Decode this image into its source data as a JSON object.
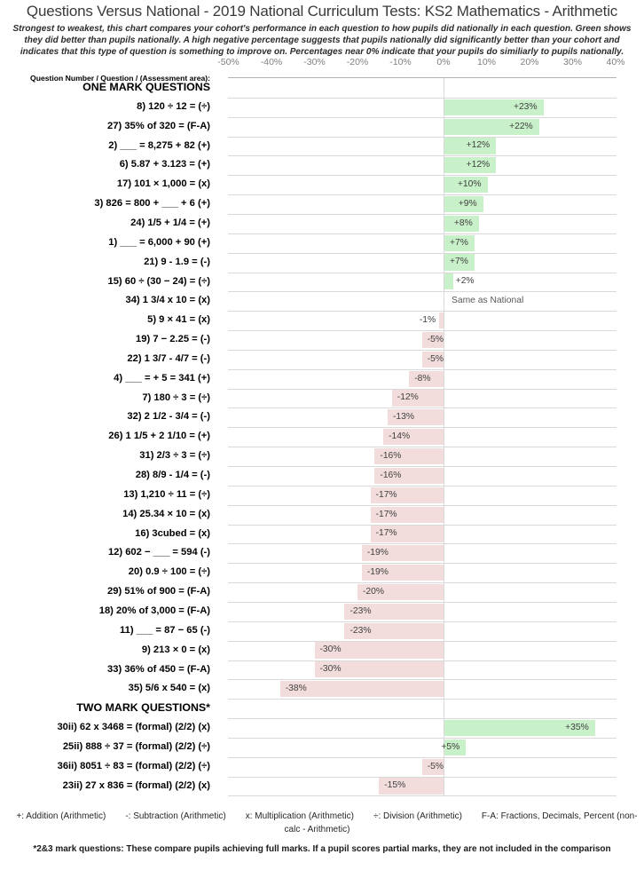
{
  "title": "Questions Versus National - 2019 National Curriculum Tests: KS2 Mathematics - Arithmetic",
  "subtitle": "Strongest to weakest, this chart compares your cohort's performance in each question to how pupils did nationally in each question. Green shows they did better than pupils nationally. A high negative percentage suggests that pupils nationally did significantly better than your cohort and indicates that this type of question is something to improve on. Percentages near 0% indicate that your pupils do similiarly to pupils nationally.",
  "row_header": "Question Number / Question / (Assessment area):",
  "chart_data": {
    "type": "bar",
    "orientation": "horizontal",
    "xlim": [
      -50,
      40
    ],
    "x_ticks": [
      "-50%",
      "-40%",
      "-30%",
      "-20%",
      "-10%",
      "0%",
      "10%",
      "20%",
      "30%",
      "40%"
    ],
    "tick_values": [
      -50,
      -40,
      -30,
      -20,
      -10,
      0,
      10,
      20,
      30,
      40
    ],
    "grid": "row-separators and zero line only",
    "zero_label": "Same as National",
    "colors": {
      "positive_fill": "#c8f0c9",
      "negative_fill": "#f2dddc",
      "gridline": "#d9d9d9",
      "label_text": "#404040"
    },
    "sections": [
      {
        "label": "ONE MARK QUESTIONS",
        "rows": [
          {
            "q": "8) 120 ÷ 12 = (÷)",
            "value": 23,
            "display": "+23%"
          },
          {
            "q": "27) 35% of 320 = (F-A)",
            "value": 22,
            "display": "+22%"
          },
          {
            "q": "2) ___ = 8,275 + 82 (+)",
            "value": 12,
            "display": "+12%"
          },
          {
            "q": "6) 5.87 + 3.123 = (+)",
            "value": 12,
            "display": "+12%"
          },
          {
            "q": "17) 101 × 1,000 = (x)",
            "value": 10,
            "display": "+10%"
          },
          {
            "q": "3) 826 = 800 + ___ + 6 (+)",
            "value": 9,
            "display": "+9%"
          },
          {
            "q": "24) 1/5 + 1/4 = (+)",
            "value": 8,
            "display": "+8%"
          },
          {
            "q": "1) ___ = 6,000 + 90 (+)",
            "value": 7,
            "display": "+7%"
          },
          {
            "q": "21) 9 - 1.9 = (-)",
            "value": 7,
            "display": "+7%"
          },
          {
            "q": "15) 60 ÷ (30 − 24) = (÷)",
            "value": 2,
            "display": "+2%"
          },
          {
            "q": "34) 1 3/4 x 10 = (x)",
            "value": 0,
            "display": "Same as National"
          },
          {
            "q": "5) 9 × 41 = (x)",
            "value": -1,
            "display": "-1%"
          },
          {
            "q": "19) 7 − 2.25 = (-)",
            "value": -5,
            "display": "-5%"
          },
          {
            "q": "22) 1 3/7 - 4/7 = (-)",
            "value": -5,
            "display": "-5%"
          },
          {
            "q": "4) ___ = + 5 = 341 (+)",
            "value": -8,
            "display": "-8%"
          },
          {
            "q": "7) 180 ÷ 3 = (÷)",
            "value": -12,
            "display": "-12%"
          },
          {
            "q": "32) 2 1/2 - 3/4 = (-)",
            "value": -13,
            "display": "-13%"
          },
          {
            "q": "26) 1 1/5 + 2 1/10 = (+)",
            "value": -14,
            "display": "-14%"
          },
          {
            "q": "31) 2/3 ÷ 3 = (÷)",
            "value": -16,
            "display": "-16%"
          },
          {
            "q": "28) 8/9 - 1/4 = (-)",
            "value": -16,
            "display": "-16%"
          },
          {
            "q": "13) 1,210 ÷ 11 = (÷)",
            "value": -17,
            "display": "-17%"
          },
          {
            "q": "14) 25.34 × 10 = (x)",
            "value": -17,
            "display": "-17%"
          },
          {
            "q": "16) 3cubed = (x)",
            "value": -17,
            "display": "-17%"
          },
          {
            "q": "12) 602 − ___ = 594 (-)",
            "value": -19,
            "display": "-19%"
          },
          {
            "q": "20) 0.9 ÷ 100 = (÷)",
            "value": -19,
            "display": "-19%"
          },
          {
            "q": "29) 51% of 900 = (F-A)",
            "value": -20,
            "display": "-20%"
          },
          {
            "q": "18) 20% of 3,000 = (F-A)",
            "value": -23,
            "display": "-23%"
          },
          {
            "q": "11) ___ = 87 − 65 (-)",
            "value": -23,
            "display": "-23%"
          },
          {
            "q": "9) 213 × 0 = (x)",
            "value": -30,
            "display": "-30%"
          },
          {
            "q": "33) 36% of 450 = (F-A)",
            "value": -30,
            "display": "-30%"
          },
          {
            "q": "35) 5/6 x 540 = (x)",
            "value": -38,
            "display": "-38%"
          }
        ]
      },
      {
        "label": "TWO MARK QUESTIONS*",
        "rows": [
          {
            "q": "30ii) 62 x 3468 = (formal) (2/2) (x)",
            "value": 35,
            "display": "+35%"
          },
          {
            "q": "25ii) 888 ÷ 37 = (formal) (2/2) (÷)",
            "value": 5,
            "display": "+5%"
          },
          {
            "q": "36ii) 8051 ÷ 83 = (formal) (2/2) (÷)",
            "value": -5,
            "display": "-5%"
          },
          {
            "q": "23ii) 27 x 836 = (formal) (2/2) (x)",
            "value": -15,
            "display": "-15%"
          }
        ]
      }
    ]
  },
  "footer": {
    "legend_items": [
      "+: Addition (Arithmetic)",
      "-: Subtraction (Arithmetic)",
      "x: Multiplication (Arithmetic)",
      "÷: Division (Arithmetic)",
      "F-A: Fractions, Decimals, Percent (non-calc - Arithmetic)"
    ],
    "footnote": "*2&3 mark questions: These compare pupils achieving full marks. If a pupil scores partial marks, they are not included in the comparison"
  }
}
